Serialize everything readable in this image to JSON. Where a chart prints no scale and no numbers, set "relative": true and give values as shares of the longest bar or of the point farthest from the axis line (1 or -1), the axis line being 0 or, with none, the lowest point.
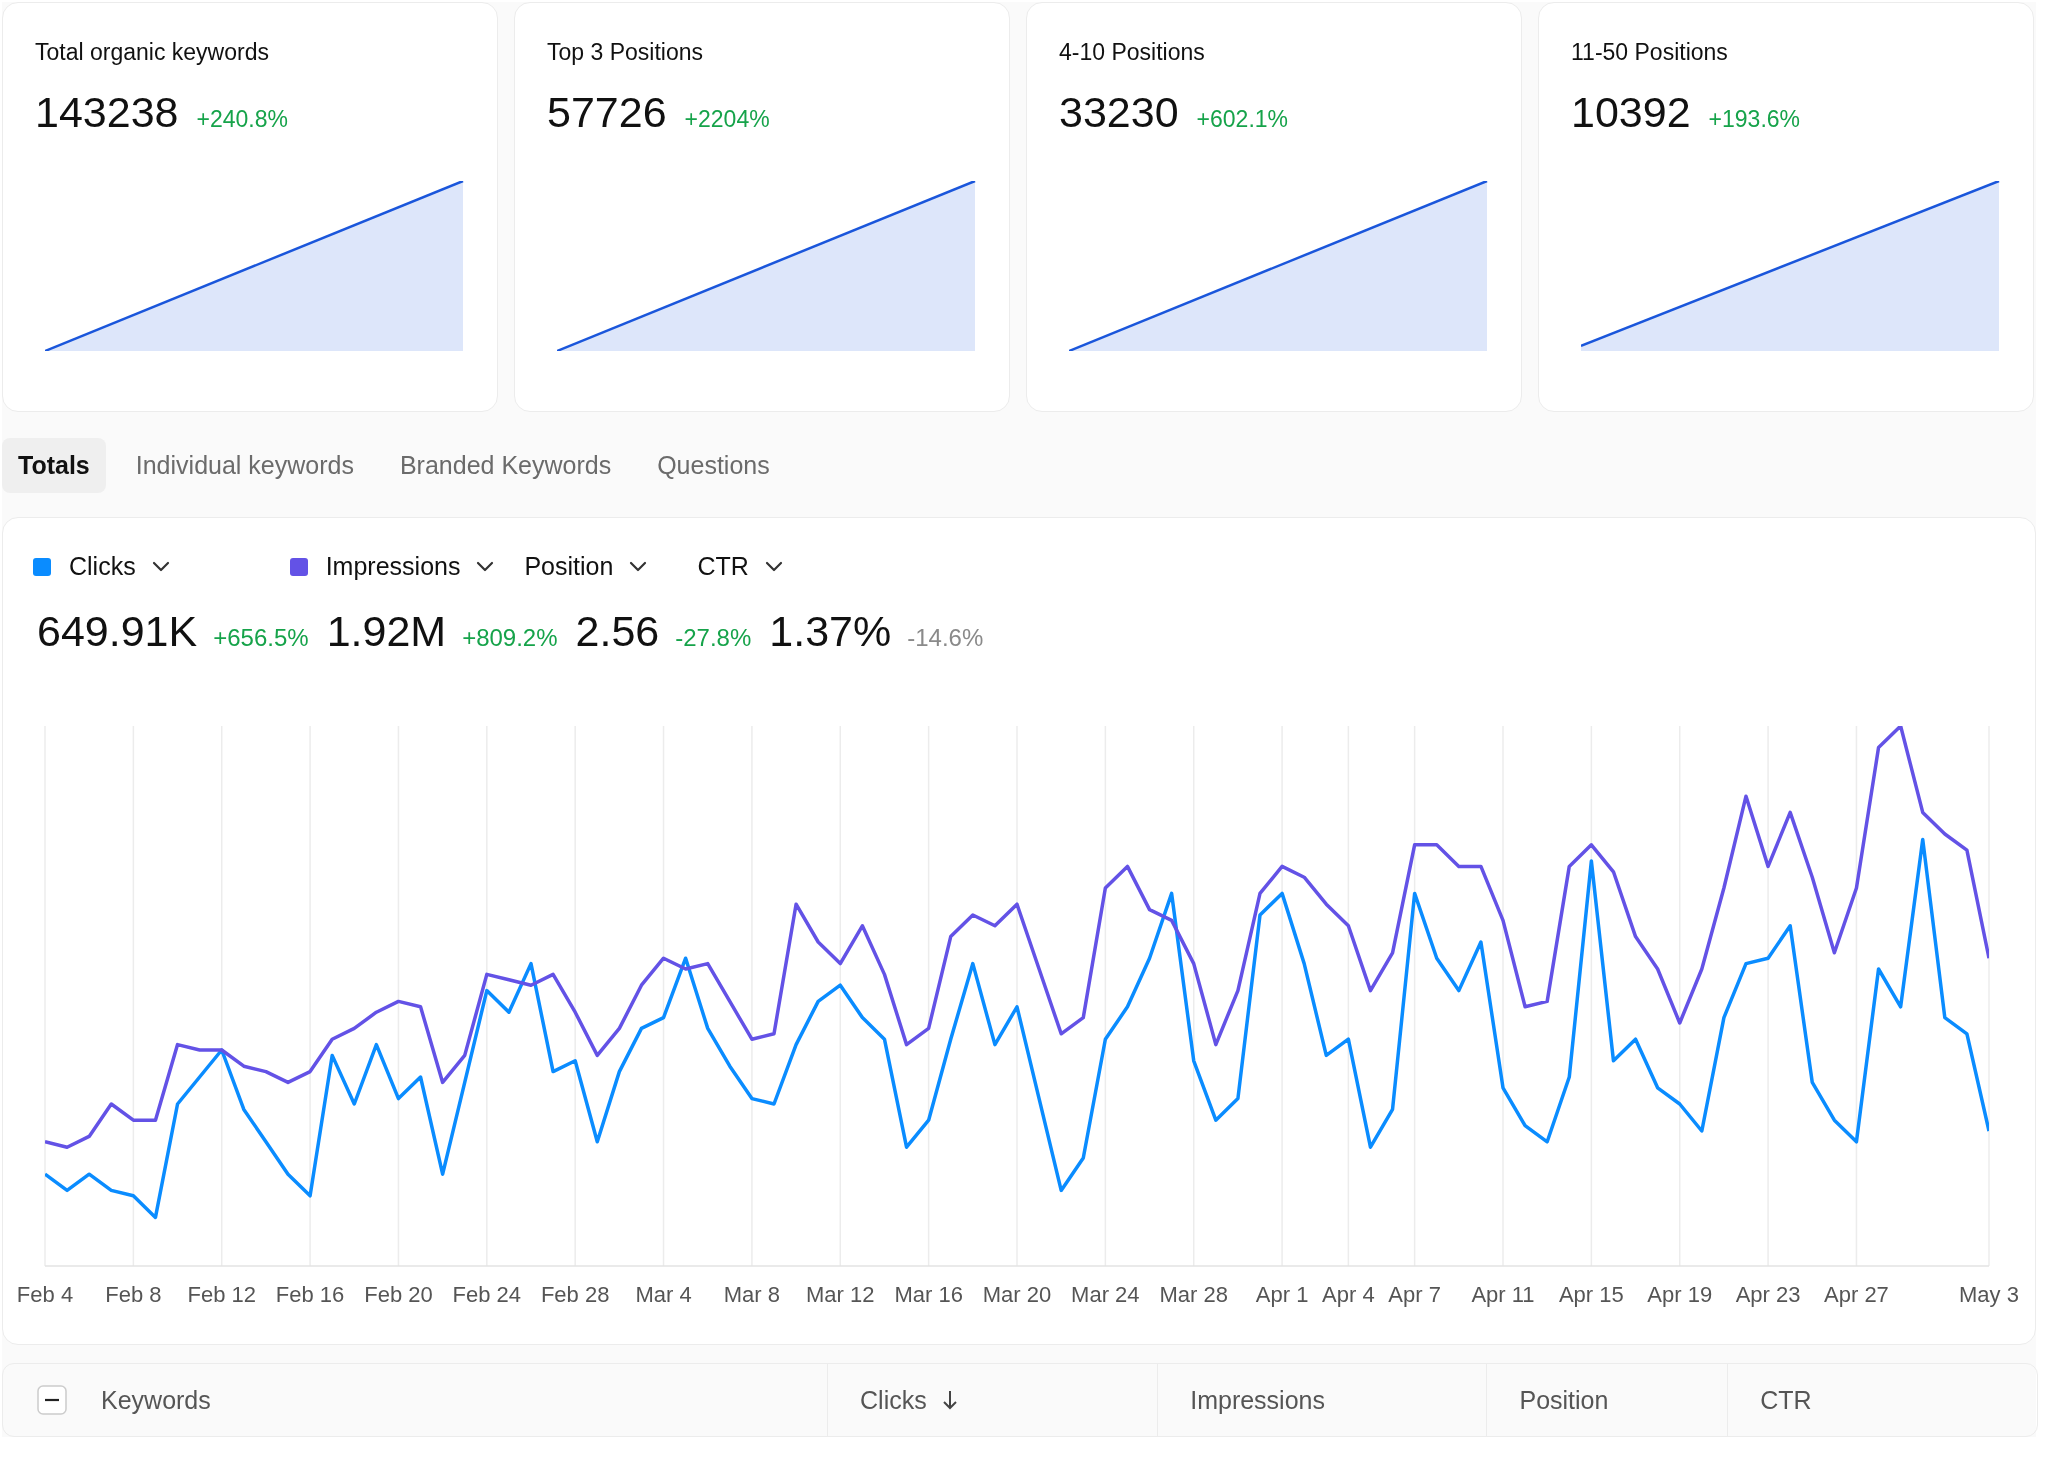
{
  "chart_data": [
    {
      "type": "area",
      "title": "Total organic keywords",
      "annotations": [
        "143238",
        "+240.8%"
      ],
      "relative": true,
      "categories": [
        null,
        null
      ],
      "series": [
        {
          "color": "#1a56db",
          "values": [
            0,
            1
          ]
        }
      ]
    },
    {
      "type": "area",
      "title": "Top 3 Positions",
      "annotations": [
        "57726",
        "+2204%"
      ],
      "relative": true,
      "categories": [
        null,
        null
      ],
      "series": [
        {
          "color": "#1a56db",
          "values": [
            0,
            1
          ]
        }
      ]
    },
    {
      "type": "area",
      "title": "4-10 Positions",
      "annotations": [
        "33230",
        "+602.1%"
      ],
      "relative": true,
      "categories": [
        null,
        null
      ],
      "series": [
        {
          "color": "#1a56db",
          "values": [
            0,
            1
          ]
        }
      ]
    },
    {
      "type": "area",
      "title": "11-50 Positions",
      "annotations": [
        "10392",
        "+193.6%"
      ],
      "relative": true,
      "categories": [
        null,
        null
      ],
      "series": [
        {
          "color": "#1a56db",
          "values": [
            0.03,
            1
          ]
        }
      ]
    },
    {
      "type": "other",
      "annotations": [
        "Totals",
        "Individual keywords",
        "Branded Keywords",
        "Questions"
      ]
    },
    {
      "type": "line",
      "relative": true,
      "legend": "top left",
      "grid": "x",
      "annotations": [
        "Position",
        "CTR",
        "649.91K",
        "+656.5%",
        "1.92M",
        "+809.2%",
        "2.56",
        "-27.8%",
        "1.37%",
        "-14.6%"
      ],
      "categories": [
        "Feb 4",
        null,
        null,
        null,
        "Feb 8",
        null,
        null,
        null,
        "Feb 12",
        null,
        null,
        null,
        "Feb 16",
        null,
        null,
        null,
        "Feb 20",
        null,
        null,
        null,
        "Feb 24",
        null,
        null,
        null,
        "Feb 28",
        null,
        null,
        null,
        "Mar 4",
        null,
        null,
        null,
        "Mar 8",
        null,
        null,
        null,
        "Mar 12",
        null,
        null,
        null,
        "Mar 16",
        null,
        null,
        null,
        "Mar 20",
        null,
        null,
        null,
        "Mar 24",
        null,
        null,
        null,
        "Mar 28",
        null,
        null,
        null,
        "Apr 1",
        null,
        null,
        "Apr 4",
        null,
        null,
        "Apr 7",
        null,
        null,
        null,
        "Apr 11",
        null,
        null,
        null,
        "Apr 15",
        null,
        null,
        null,
        "Apr 19",
        null,
        null,
        null,
        "Apr 23",
        null,
        null,
        null,
        "Apr 27",
        null,
        null,
        null,
        null,
        null,
        "May 3"
      ],
      "series": [
        {
          "name": "Clicks",
          "color": "#0a8cff",
          "values": [
            0.17,
            0.14,
            0.17,
            0.14,
            0.13,
            0.09,
            0.3,
            0.35,
            0.4,
            0.29,
            0.23,
            0.17,
            0.13,
            0.39,
            0.3,
            0.41,
            0.31,
            0.35,
            0.17,
            0.34,
            0.51,
            0.47,
            0.56,
            0.36,
            0.38,
            0.23,
            0.36,
            0.44,
            0.46,
            0.57,
            0.44,
            0.37,
            0.31,
            0.3,
            0.41,
            0.49,
            0.52,
            0.46,
            0.42,
            0.22,
            0.27,
            0.42,
            0.56,
            0.41,
            0.48,
            0.31,
            0.14,
            0.2,
            0.42,
            0.48,
            0.57,
            0.69,
            0.38,
            0.27,
            0.31,
            0.65,
            0.69,
            0.56,
            0.39,
            0.42,
            0.22,
            0.29,
            0.69,
            0.57,
            0.51,
            0.6,
            0.33,
            0.26,
            0.23,
            0.35,
            0.75,
            0.38,
            0.42,
            0.33,
            0.3,
            0.25,
            0.46,
            0.56,
            0.57,
            0.63,
            0.34,
            0.27,
            0.23,
            0.55,
            0.48,
            0.79,
            0.46,
            0.43,
            0.25
          ]
        },
        {
          "name": "Impressions",
          "color": "#6352e6",
          "values": [
            0.23,
            0.22,
            0.24,
            0.3,
            0.27,
            0.27,
            0.41,
            0.4,
            0.4,
            0.37,
            0.36,
            0.34,
            0.36,
            0.42,
            0.44,
            0.47,
            0.49,
            0.48,
            0.34,
            0.39,
            0.54,
            0.53,
            0.52,
            0.54,
            0.47,
            0.39,
            0.44,
            0.52,
            0.57,
            0.55,
            0.56,
            0.49,
            0.42,
            0.43,
            0.67,
            0.6,
            0.56,
            0.63,
            0.54,
            0.41,
            0.44,
            0.61,
            0.65,
            0.63,
            0.67,
            0.55,
            0.43,
            0.46,
            0.7,
            0.74,
            0.66,
            0.64,
            0.56,
            0.41,
            0.51,
            0.69,
            0.74,
            0.72,
            0.67,
            0.63,
            0.51,
            0.58,
            0.78,
            0.78,
            0.74,
            0.74,
            0.64,
            0.48,
            0.49,
            0.74,
            0.78,
            0.73,
            0.61,
            0.55,
            0.45,
            0.55,
            0.7,
            0.87,
            0.74,
            0.84,
            0.72,
            0.58,
            0.7,
            0.96,
            1,
            0.84,
            0.8,
            0.77,
            0.57
          ]
        }
      ]
    },
    {
      "type": "other",
      "annotations": [
        "Keywords",
        "Clicks",
        "Impressions",
        "Position",
        "CTR"
      ]
    }
  ]
}
